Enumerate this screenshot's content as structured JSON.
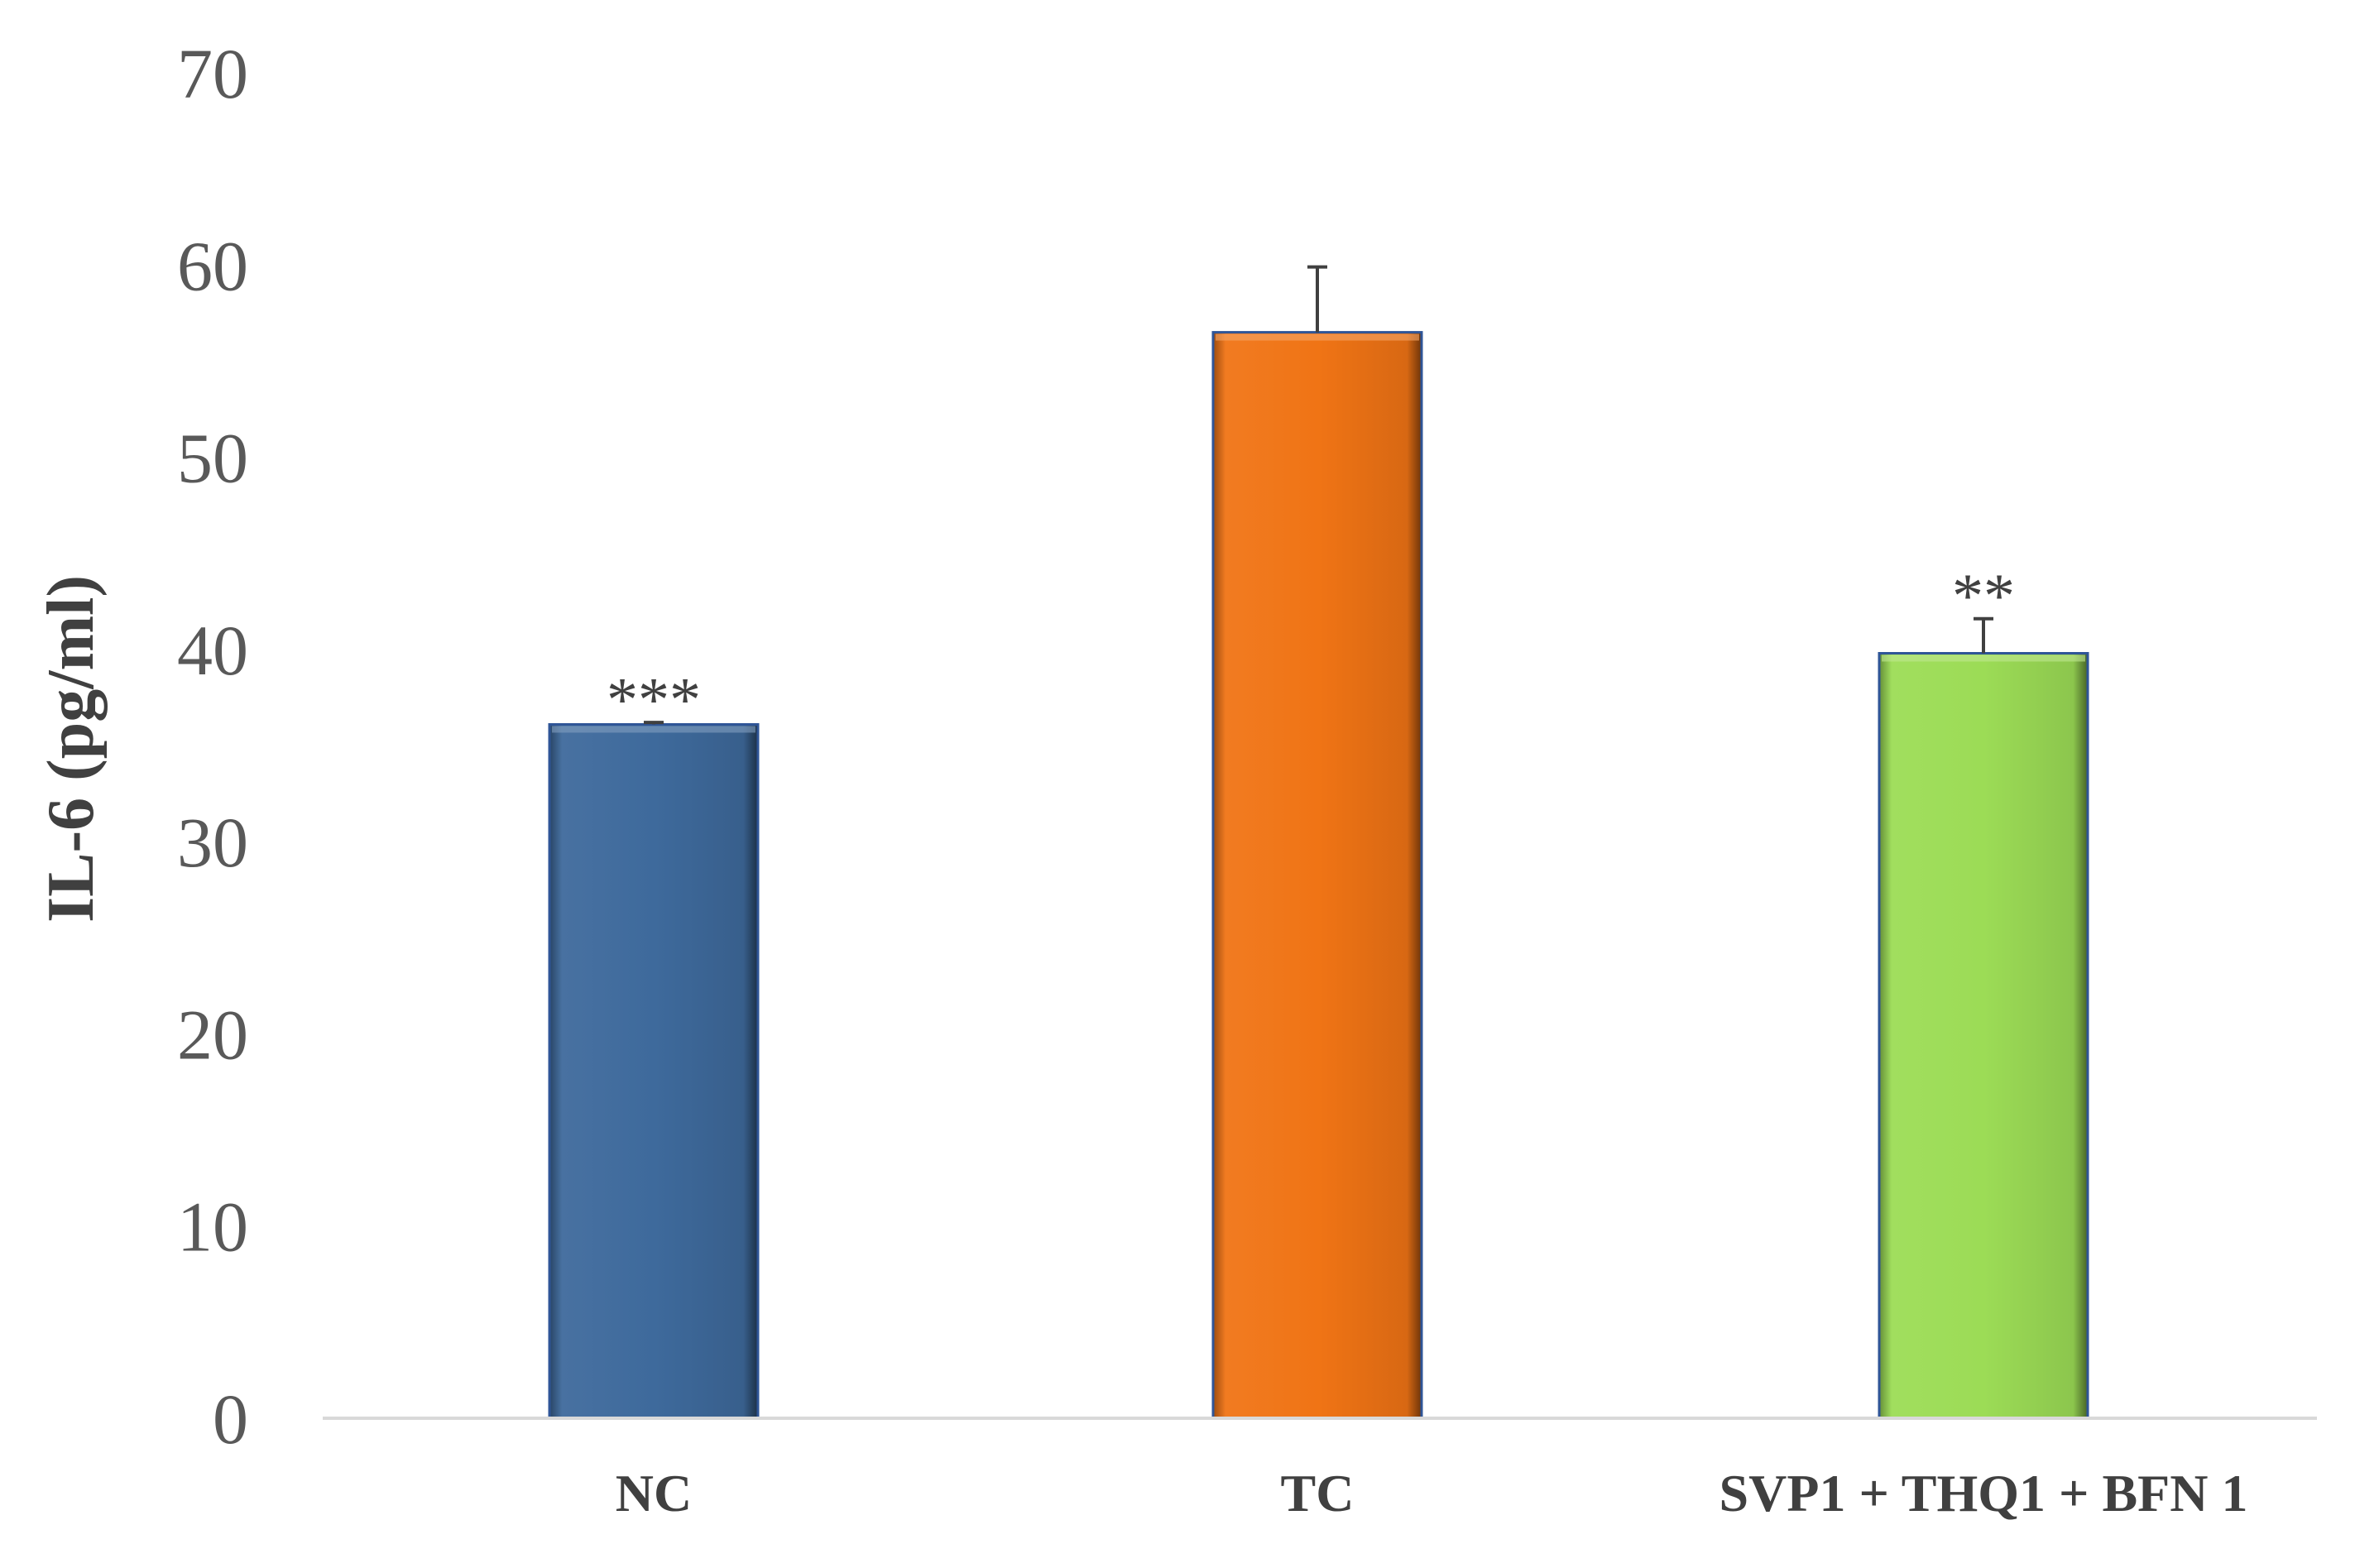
{
  "chart_data": {
    "type": "bar",
    "title": "",
    "xlabel": "",
    "ylabel": "IL-6 (pg/ml)",
    "ylim": [
      0,
      70
    ],
    "yticks": [
      0,
      10,
      20,
      30,
      40,
      50,
      60,
      70
    ],
    "grid": false,
    "categories": [
      "NC",
      "TC",
      "SVP1 + THQ1 + BFN 1"
    ],
    "values": [
      36.1,
      56.5,
      39.8
    ],
    "errors": [
      0.1,
      3.4,
      1.8
    ],
    "significance": [
      "***",
      "",
      "**"
    ],
    "colors": [
      "#3e6a9c",
      "#f07415",
      "#9cdc56"
    ],
    "axis_color": "#d9d9d9"
  }
}
